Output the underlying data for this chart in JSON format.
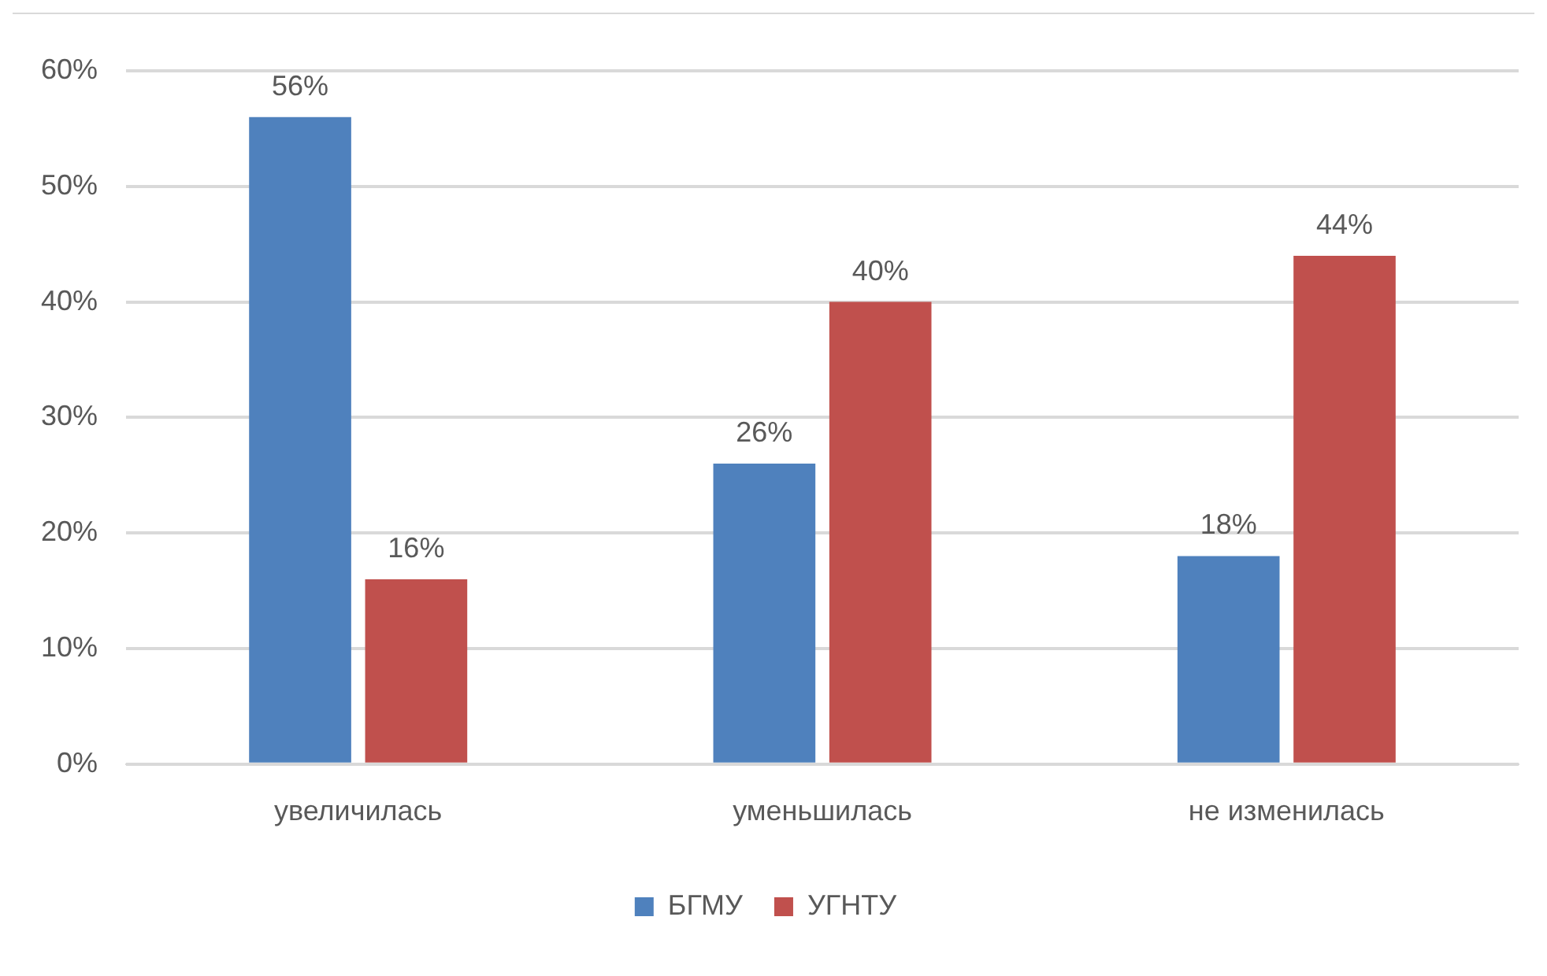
{
  "chart_data": {
    "type": "bar",
    "categories": [
      "увеличилась",
      "уменьшилась",
      "не изменилась"
    ],
    "series": [
      {
        "name": "БГМУ",
        "color": "#4f81bd",
        "values": [
          56,
          26,
          18
        ],
        "value_labels": [
          "56%",
          "26%",
          "18%"
        ]
      },
      {
        "name": "УГНТУ",
        "color": "#c0504d",
        "values": [
          16,
          40,
          44
        ],
        "value_labels": [
          "16%",
          "40%",
          "44%"
        ]
      }
    ],
    "ylim": [
      0,
      60
    ],
    "yticks": [
      {
        "value": 0,
        "label": "0%"
      },
      {
        "value": 10,
        "label": "10%"
      },
      {
        "value": 20,
        "label": "20%"
      },
      {
        "value": 30,
        "label": "30%"
      },
      {
        "value": 40,
        "label": "40%"
      },
      {
        "value": 50,
        "label": "50%"
      },
      {
        "value": 60,
        "label": "60%"
      }
    ],
    "grid": "y",
    "legend": "bottom"
  }
}
